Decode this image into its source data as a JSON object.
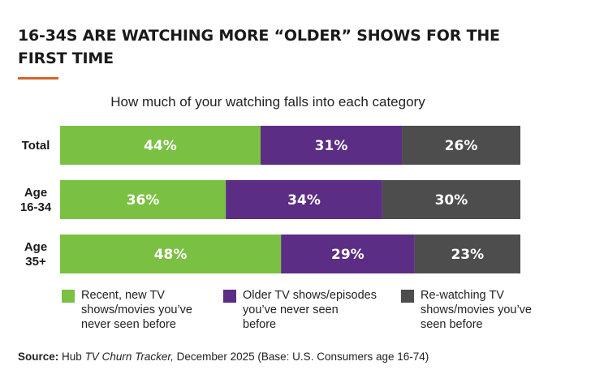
{
  "title": "16-34S ARE WATCHING MORE “OLDER” SHOWS FOR THE FIRST TIME",
  "colors": {
    "accent": "#d4632a",
    "recent": "#7ac143",
    "older": "#5b2d84",
    "rewatch": "#4d4d4d",
    "bar_text": "#ffffff"
  },
  "chart_data": {
    "type": "bar",
    "orientation": "horizontal",
    "stacked": true,
    "title": "How much of your watching falls into each category",
    "categories": [
      "Total",
      "Age\n16-34",
      "Age\n35+"
    ],
    "series": [
      {
        "name": "Recent, new TV\nshows/movies you’ve\nnever seen before",
        "key": "recent",
        "values": [
          44,
          36,
          48
        ]
      },
      {
        "name": "Older TV shows/episodes\nyou’ve never seen\nbefore",
        "key": "older",
        "values": [
          31,
          34,
          29
        ]
      },
      {
        "name": "Re-watching TV\nshows/movies you’ve\nseen before",
        "key": "rewatch",
        "values": [
          26,
          30,
          23
        ]
      }
    ],
    "value_suffix": "%",
    "legend": "bottom"
  },
  "source": {
    "label": "Source:",
    "prefix": "Hub",
    "report": "TV Churn Tracker,",
    "detail": "December 2025 (Base: U.S. Consumers age 16-74)"
  }
}
